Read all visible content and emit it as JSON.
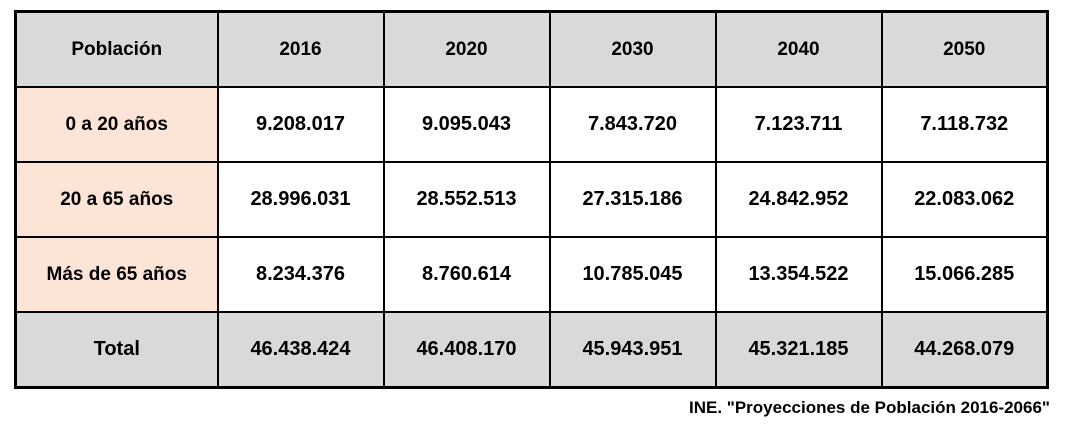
{
  "chart_data": {
    "type": "table",
    "columns": [
      "Población",
      "2016",
      "2020",
      "2030",
      "2040",
      "2050"
    ],
    "rows": [
      {
        "label": "0 a 20 años",
        "values": [
          "9.208.017",
          "9.095.043",
          "7.843.720",
          "7.123.711",
          "7.118.732"
        ]
      },
      {
        "label": "20 a 65 años",
        "values": [
          "28.996.031",
          "28.552.513",
          "27.315.186",
          "24.842.952",
          "22.083.062"
        ]
      },
      {
        "label": "Más de 65 años",
        "values": [
          "8.234.376",
          "8.760.614",
          "10.785.045",
          "13.354.522",
          "15.066.285"
        ]
      },
      {
        "label": "Total",
        "values": [
          "46.438.424",
          "46.408.170",
          "45.943.951",
          "45.321.185",
          "44.268.079"
        ]
      }
    ],
    "source": "INE. \"Proyecciones de Población 2016-2066\"",
    "colors": {
      "header_bg": "#d9d9d9",
      "row_label_bg": "#fce4d6",
      "total_row_bg": "#d9d9d9",
      "cell_bg": "#ffffff",
      "border": "#000000"
    }
  }
}
